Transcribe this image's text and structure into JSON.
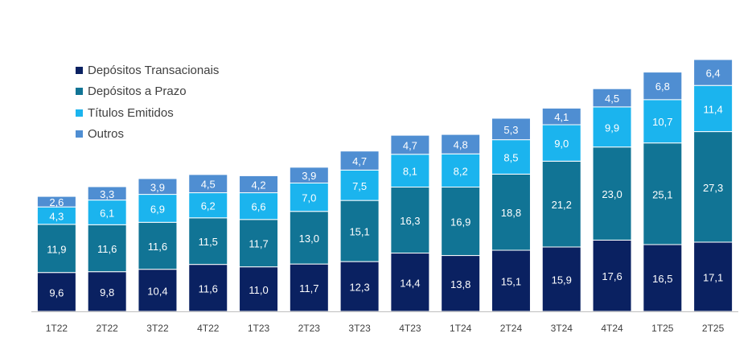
{
  "chart_data": {
    "type": "bar",
    "stacked": true,
    "categories": [
      "1T22",
      "2T22",
      "3T22",
      "4T22",
      "1T23",
      "2T23",
      "3T23",
      "4T23",
      "1T24",
      "2T24",
      "3T24",
      "4T24",
      "1T25",
      "2T25"
    ],
    "series": [
      {
        "name": "Depósitos Transacionais",
        "color": "#0a2161",
        "label_color": "#ffffff",
        "values": [
          9.6,
          9.8,
          10.4,
          11.6,
          11.0,
          11.7,
          12.3,
          14.4,
          13.8,
          15.1,
          15.9,
          17.6,
          16.5,
          17.1
        ],
        "labels": [
          "9,6",
          "9,8",
          "10,4",
          "11,6",
          "11,0",
          "11,7",
          "12,3",
          "14,4",
          "13,8",
          "15,1",
          "15,9",
          "17,6",
          "16,5",
          "17,1"
        ]
      },
      {
        "name": "Depósitos a Prazo",
        "color": "#117495",
        "label_color": "#ffffff",
        "values": [
          11.9,
          11.6,
          11.6,
          11.5,
          11.7,
          13.0,
          15.1,
          16.3,
          16.9,
          18.8,
          21.2,
          23.0,
          25.1,
          27.3
        ],
        "labels": [
          "11,9",
          "11,6",
          "11,6",
          "11,5",
          "11,7",
          "13,0",
          "15,1",
          "16,3",
          "16,9",
          "18,8",
          "21,2",
          "23,0",
          "25,1",
          "27,3"
        ]
      },
      {
        "name": "Títulos Emitidos",
        "color": "#1bb4ee",
        "label_color": "#ffffff",
        "values": [
          4.3,
          6.1,
          6.9,
          6.2,
          6.6,
          7.0,
          7.5,
          8.1,
          8.2,
          8.5,
          9.0,
          9.9,
          10.7,
          11.4
        ],
        "labels": [
          "4,3",
          "6,1",
          "6,9",
          "6,2",
          "6,6",
          "7,0",
          "7,5",
          "8,1",
          "8,2",
          "8,5",
          "9,0",
          "9,9",
          "10,7",
          "11,4"
        ]
      },
      {
        "name": "Outros",
        "color": "#4f8ed2",
        "label_color": "#ffffff",
        "values": [
          2.6,
          3.3,
          3.9,
          4.5,
          4.2,
          3.9,
          4.7,
          4.7,
          4.8,
          5.3,
          4.1,
          4.5,
          6.8,
          6.4
        ],
        "labels": [
          "2,6",
          "3,3",
          "3,9",
          "4,5",
          "4,2",
          "3,9",
          "4,7",
          "4,7",
          "4,8",
          "5,3",
          "4,1",
          "4,5",
          "6,8",
          "6,4"
        ]
      }
    ],
    "title": "",
    "xlabel": "",
    "ylabel": "",
    "ylim": [
      0,
      62
    ],
    "grid": false,
    "legend_position": "top-left",
    "axis_color": "#bfbfbf"
  }
}
